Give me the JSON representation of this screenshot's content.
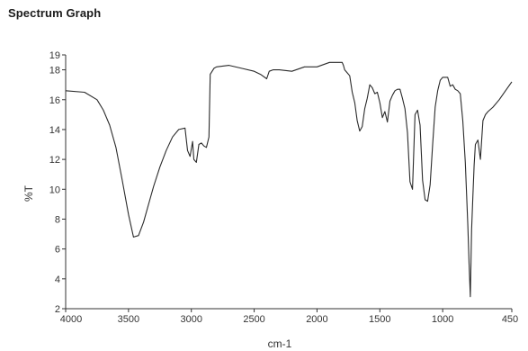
{
  "chart_data": {
    "type": "line",
    "title": "Spectrum Graph",
    "xlabel": "cm-1",
    "ylabel": "%T",
    "xlim": [
      4000,
      450
    ],
    "ylim": [
      2,
      19
    ],
    "x_reversed": true,
    "grid": false,
    "legend": "none",
    "line_color": "#2a2a2a",
    "x_ticks": [
      4000,
      3500,
      3000,
      2500,
      2000,
      1500,
      1000,
      450
    ],
    "y_ticks": [
      2,
      4,
      6,
      8,
      10,
      12,
      14,
      16,
      18,
      19
    ],
    "series": [
      {
        "x": [
          4000,
          3850,
          3750,
          3700,
          3650,
          3600,
          3550,
          3500,
          3460,
          3420,
          3380,
          3340,
          3300,
          3250,
          3200,
          3150,
          3100,
          3050,
          3030,
          3010,
          2990,
          2980,
          2960,
          2940,
          2920,
          2900,
          2880,
          2860,
          2850,
          2820,
          2800,
          2700,
          2600,
          2500,
          2450,
          2400,
          2380,
          2350,
          2300,
          2200,
          2100,
          2000,
          1900,
          1850,
          1800,
          1790,
          1780,
          1760,
          1740,
          1720,
          1700,
          1680,
          1660,
          1640,
          1620,
          1600,
          1580,
          1560,
          1540,
          1520,
          1500,
          1480,
          1460,
          1440,
          1420,
          1400,
          1380,
          1360,
          1340,
          1320,
          1300,
          1280,
          1260,
          1240,
          1220,
          1200,
          1180,
          1160,
          1140,
          1120,
          1100,
          1080,
          1060,
          1040,
          1020,
          1000,
          990,
          960,
          940,
          920,
          900,
          880,
          860,
          840,
          820,
          800,
          790,
          780,
          770,
          760,
          750,
          740,
          720,
          700,
          680,
          660,
          640,
          600,
          550,
          500,
          450
        ],
        "y": [
          16.6,
          16.5,
          16.0,
          15.3,
          14.3,
          12.8,
          10.6,
          8.3,
          6.8,
          6.9,
          7.8,
          9.0,
          10.2,
          11.5,
          12.6,
          13.5,
          14.0,
          14.1,
          12.6,
          12.2,
          13.2,
          12.0,
          11.8,
          13.0,
          13.1,
          12.9,
          12.8,
          13.5,
          17.7,
          18.1,
          18.2,
          18.3,
          18.1,
          17.9,
          17.7,
          17.4,
          17.9,
          18.0,
          18.0,
          17.9,
          18.2,
          18.2,
          18.5,
          18.5,
          18.5,
          18.3,
          18.0,
          17.8,
          17.6,
          16.5,
          15.8,
          14.6,
          13.9,
          14.2,
          15.4,
          16.1,
          17.0,
          16.8,
          16.4,
          16.5,
          15.8,
          14.8,
          15.2,
          14.5,
          15.9,
          16.3,
          16.6,
          16.7,
          16.7,
          16.1,
          15.4,
          13.8,
          10.5,
          10.0,
          15.0,
          15.3,
          14.3,
          10.6,
          9.3,
          9.2,
          10.3,
          13.0,
          15.5,
          16.6,
          17.3,
          17.5,
          17.5,
          17.5,
          16.9,
          17.0,
          16.7,
          16.6,
          16.4,
          14.6,
          11.8,
          7.6,
          5.0,
          2.8,
          7.3,
          9.5,
          11.6,
          13.0,
          13.3,
          12.0,
          14.6,
          15.0,
          15.2,
          15.5,
          16.0,
          16.6,
          17.2
        ]
      }
    ]
  }
}
